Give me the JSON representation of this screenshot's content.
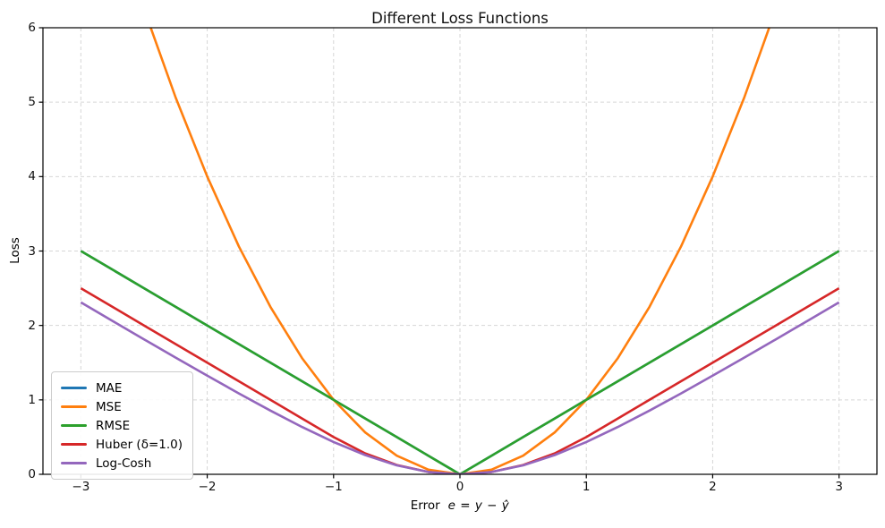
{
  "chart_data": {
    "type": "line",
    "title": "Different Loss Functions",
    "xlabel_prefix": "Error",
    "xlabel_math": "e = y − ŷ",
    "ylabel": "Loss",
    "xlim": [
      -3.3,
      3.3
    ],
    "ylim": [
      0,
      6
    ],
    "grid": {
      "on": true,
      "style": "dashed"
    },
    "legend": {
      "position": "lower-left",
      "entries": [
        "MAE",
        "MSE",
        "RMSE",
        "Huber (δ=1.0)",
        "Log-Cosh"
      ]
    },
    "xticks": {
      "values": [
        -3,
        -2,
        -1,
        0,
        1,
        2,
        3
      ],
      "labels": [
        "−3",
        "−2",
        "−1",
        "0",
        "1",
        "2",
        "3"
      ]
    },
    "yticks": {
      "values": [
        0,
        1,
        2,
        3,
        4,
        5,
        6
      ],
      "labels": [
        "0",
        "1",
        "2",
        "3",
        "4",
        "5",
        "6"
      ]
    },
    "x": [
      -3,
      -2.75,
      -2.5,
      -2.25,
      -2,
      -1.75,
      -1.5,
      -1.25,
      -1,
      -0.75,
      -0.5,
      -0.25,
      0,
      0.25,
      0.5,
      0.75,
      1,
      1.25,
      1.5,
      1.75,
      2,
      2.25,
      2.5,
      2.75,
      3
    ],
    "series": [
      {
        "name": "MAE",
        "color": "#1f77b4",
        "values": [
          3,
          2.75,
          2.5,
          2.25,
          2,
          1.75,
          1.5,
          1.25,
          1,
          0.75,
          0.5,
          0.25,
          0,
          0.25,
          0.5,
          0.75,
          1,
          1.25,
          1.5,
          1.75,
          2,
          2.25,
          2.5,
          2.75,
          3
        ]
      },
      {
        "name": "MSE",
        "color": "#ff7f0e",
        "values": [
          9,
          7.5625,
          6.25,
          5.0625,
          4,
          3.0625,
          2.25,
          1.5625,
          1,
          0.5625,
          0.25,
          0.0625,
          0,
          0.0625,
          0.25,
          0.5625,
          1,
          1.5625,
          2.25,
          3.0625,
          4,
          5.0625,
          6.25,
          7.5625,
          9
        ]
      },
      {
        "name": "RMSE",
        "color": "#2ca02c",
        "values": [
          3,
          2.75,
          2.5,
          2.25,
          2,
          1.75,
          1.5,
          1.25,
          1,
          0.75,
          0.5,
          0.25,
          0,
          0.25,
          0.5,
          0.75,
          1,
          1.25,
          1.5,
          1.75,
          2,
          2.25,
          2.5,
          2.75,
          3
        ]
      },
      {
        "name": "Huber (δ=1.0)",
        "color": "#d62728",
        "values": [
          2.5,
          2.25,
          2,
          1.75,
          1.5,
          1.25,
          1,
          0.75,
          0.5,
          0.2813,
          0.125,
          0.0313,
          0,
          0.0313,
          0.125,
          0.2813,
          0.5,
          0.75,
          1,
          1.25,
          1.5,
          1.75,
          2,
          2.25,
          2.5
        ]
      },
      {
        "name": "Log-Cosh",
        "color": "#9467bd",
        "values": [
          2.3094,
          2.0609,
          1.8137,
          1.5679,
          1.3251,
          1.0866,
          0.8557,
          0.6357,
          0.4338,
          0.2583,
          0.1201,
          0.0309,
          0,
          0.0309,
          0.1201,
          0.2583,
          0.4338,
          0.6357,
          0.8557,
          1.0866,
          1.3251,
          1.5679,
          1.8137,
          2.0609,
          2.3094
        ]
      }
    ]
  }
}
